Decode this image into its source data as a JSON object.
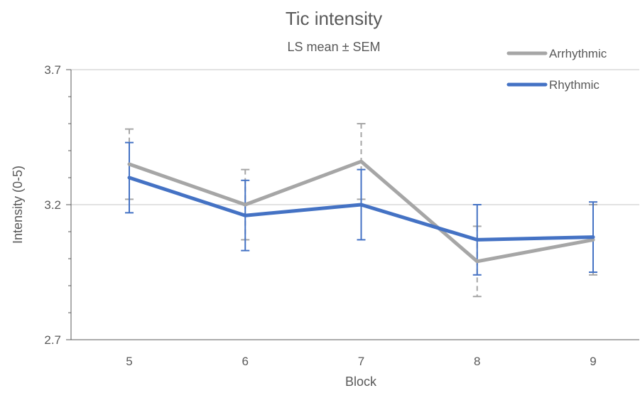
{
  "chart_data": {
    "type": "line",
    "title": "Tic intensity",
    "subtitle": "LS mean ± SEM",
    "xlabel": "Block",
    "ylabel": "Intensity (0-5)",
    "categories": [
      "5",
      "6",
      "7",
      "8",
      "9"
    ],
    "ylim": [
      2.7,
      3.7
    ],
    "yticks": [
      "2.7",
      "3.2",
      "3.7"
    ],
    "grid": "horizontal",
    "legend_position": "top-right",
    "series": [
      {
        "name": "Arrhythmic",
        "color": "#a6a6a6",
        "error_bar_style": "dashed",
        "values": [
          3.35,
          3.2,
          3.36,
          2.99,
          3.07
        ],
        "sem": [
          0.13,
          0.13,
          0.14,
          0.13,
          0.13
        ]
      },
      {
        "name": "Rhythmic",
        "color": "#4472c4",
        "error_bar_style": "solid",
        "values": [
          3.3,
          3.16,
          3.2,
          3.07,
          3.08
        ],
        "sem": [
          0.13,
          0.13,
          0.13,
          0.13,
          0.13
        ]
      }
    ],
    "axis_color": "#595959",
    "grid_color": "#d9d9d9"
  }
}
